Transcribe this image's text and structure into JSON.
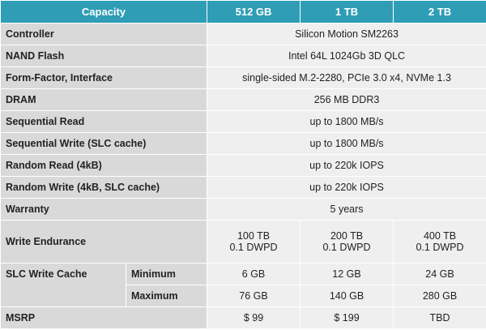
{
  "header": {
    "label": "Capacity",
    "columns": [
      "512 GB",
      "1 TB",
      "2 TB"
    ]
  },
  "rows": [
    {
      "label": "Controller",
      "value": "Silicon Motion SM2263"
    },
    {
      "label": "NAND Flash",
      "value": "Intel 64L 1024Gb 3D QLC"
    },
    {
      "label": "Form-Factor, Interface",
      "value": "single-sided M.2-2280, PCIe 3.0 x4, NVMe 1.3"
    },
    {
      "label": "DRAM",
      "value": "256 MB DDR3"
    },
    {
      "label": "Sequential Read",
      "value": "up to 1800 MB/s"
    },
    {
      "label": "Sequential Write (SLC cache)",
      "value": "up to 1800 MB/s"
    },
    {
      "label": "Random Read (4kB)",
      "value": "up to 220k IOPS"
    },
    {
      "label": "Random Write (4kB, SLC cache)",
      "value": "up to 220k IOPS"
    },
    {
      "label": "Warranty",
      "value": "5 years"
    }
  ],
  "endurance": {
    "label": "Write Endurance",
    "values": [
      [
        "100 TB",
        "0.1 DWPD"
      ],
      [
        "200 TB",
        "0.1 DWPD"
      ],
      [
        "400 TB",
        "0.1 DWPD"
      ]
    ]
  },
  "slc_cache": {
    "label": "SLC Write Cache",
    "rows": [
      {
        "label": "Minimum",
        "values": [
          "6 GB",
          "12 GB",
          "24 GB"
        ]
      },
      {
        "label": "Maximum",
        "values": [
          "76 GB",
          "140 GB",
          "280 GB"
        ]
      }
    ]
  },
  "msrp": {
    "label": "MSRP",
    "values": [
      "$ 99",
      "$ 199",
      "TBD"
    ]
  }
}
